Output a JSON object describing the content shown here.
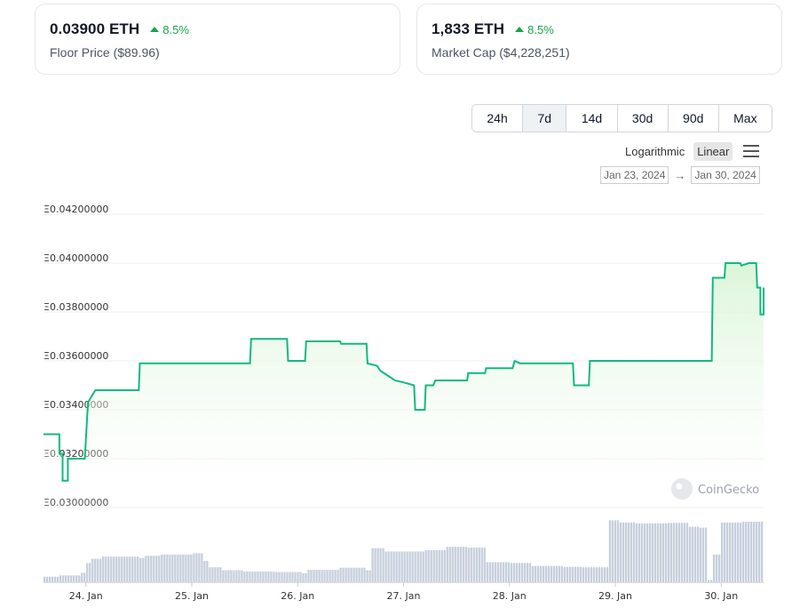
{
  "cards": [
    {
      "value": "0.03900 ETH",
      "change": "8.5%",
      "label": "Floor Price ($89.96)"
    },
    {
      "value": "1,833 ETH",
      "change": "8.5%",
      "label": "Market Cap ($4,228,251)"
    }
  ],
  "ranges": {
    "options": [
      "24h",
      "7d",
      "14d",
      "30d",
      "90d",
      "Max"
    ],
    "active": "7d"
  },
  "scale": {
    "log_label": "Logarithmic",
    "linear_label": "Linear",
    "active": "Linear"
  },
  "date_range": {
    "from": "Jan 23, 2024",
    "arrow": "→",
    "to": "Jan 30, 2024"
  },
  "watermark": "CoinGecko",
  "colors": {
    "line": "#10b981",
    "area_top": "#d9f5d6",
    "volume": "#c6cfdc",
    "positive": "#16a34a"
  },
  "chart_data": {
    "type": "line",
    "title": "",
    "xlabel": "",
    "ylabel": "",
    "y_tick_prefix": "Ξ",
    "yticks": [
      "Ξ0.04200000",
      "Ξ0.04000000",
      "Ξ0.03800000",
      "Ξ0.03600000",
      "Ξ0.03400000",
      "Ξ0.03200000",
      "Ξ0.03000000"
    ],
    "ytick_values": [
      0.042,
      0.04,
      0.038,
      0.036,
      0.034,
      0.032,
      0.03
    ],
    "ylim": [
      0.03,
      0.042
    ],
    "xticks": [
      "24. Jan",
      "25. Jan",
      "26. Jan",
      "27. Jan",
      "28. Jan",
      "29. Jan",
      "30. Jan"
    ],
    "xtick_values": [
      1,
      2,
      3,
      4,
      5,
      6,
      7
    ],
    "x_unit": "days since Jan 23, 2024",
    "xlim": [
      0.6,
      7.4
    ],
    "grid": true,
    "series": [
      {
        "values": [
          [
            0.6,
            0.033
          ],
          [
            0.75,
            0.033
          ],
          [
            0.75,
            0.0322
          ],
          [
            0.78,
            0.0322
          ],
          [
            0.78,
            0.0311
          ],
          [
            0.83,
            0.0311
          ],
          [
            0.83,
            0.032
          ],
          [
            0.99,
            0.032
          ],
          [
            1.02,
            0.0343
          ],
          [
            1.06,
            0.0346
          ],
          [
            1.09,
            0.0348
          ],
          [
            1.5,
            0.0348
          ],
          [
            1.51,
            0.0359
          ],
          [
            2.55,
            0.0359
          ],
          [
            2.56,
            0.0369
          ],
          [
            2.9,
            0.0369
          ],
          [
            2.91,
            0.036
          ],
          [
            3.07,
            0.036
          ],
          [
            3.08,
            0.0368
          ],
          [
            3.4,
            0.0368
          ],
          [
            3.41,
            0.0367
          ],
          [
            3.65,
            0.0367
          ],
          [
            3.66,
            0.0359
          ],
          [
            3.75,
            0.0358
          ],
          [
            3.78,
            0.0356
          ],
          [
            3.85,
            0.0354
          ],
          [
            3.92,
            0.0352
          ],
          [
            4.02,
            0.0351
          ],
          [
            4.1,
            0.035
          ],
          [
            4.11,
            0.034
          ],
          [
            4.2,
            0.034
          ],
          [
            4.21,
            0.035
          ],
          [
            4.28,
            0.035
          ],
          [
            4.3,
            0.0352
          ],
          [
            4.6,
            0.0352
          ],
          [
            4.61,
            0.0355
          ],
          [
            4.77,
            0.0355
          ],
          [
            4.78,
            0.0357
          ],
          [
            5.03,
            0.0357
          ],
          [
            5.05,
            0.036
          ],
          [
            5.1,
            0.0359
          ],
          [
            5.6,
            0.0359
          ],
          [
            5.61,
            0.035
          ],
          [
            5.75,
            0.035
          ],
          [
            5.76,
            0.036
          ],
          [
            6.91,
            0.036
          ],
          [
            6.92,
            0.0394
          ],
          [
            7.03,
            0.0394
          ],
          [
            7.04,
            0.04
          ],
          [
            7.18,
            0.04
          ],
          [
            7.19,
            0.0399
          ],
          [
            7.26,
            0.04
          ],
          [
            7.33,
            0.04
          ],
          [
            7.34,
            0.039
          ],
          [
            7.37,
            0.039
          ],
          [
            7.37,
            0.0379
          ],
          [
            7.42,
            0.0379
          ],
          [
            7.42,
            0.039
          ],
          [
            7.46,
            0.039
          ]
        ]
      }
    ],
    "volume": {
      "x_range": [
        0.6,
        7.46
      ],
      "segments": [
        [
          0.6,
          0.13
        ],
        [
          0.75,
          0.16
        ],
        [
          0.95,
          0.22
        ],
        [
          1.01,
          0.45
        ],
        [
          1.06,
          0.55
        ],
        [
          1.15,
          0.6
        ],
        [
          1.5,
          0.57
        ],
        [
          1.55,
          0.62
        ],
        [
          1.7,
          0.65
        ],
        [
          2.0,
          0.68
        ],
        [
          2.1,
          0.5
        ],
        [
          2.17,
          0.35
        ],
        [
          2.3,
          0.28
        ],
        [
          2.5,
          0.25
        ],
        [
          2.8,
          0.24
        ],
        [
          3.05,
          0.21
        ],
        [
          3.1,
          0.29
        ],
        [
          3.4,
          0.34
        ],
        [
          3.65,
          0.28
        ],
        [
          3.7,
          0.8
        ],
        [
          3.82,
          0.72
        ],
        [
          4.2,
          0.75
        ],
        [
          4.4,
          0.83
        ],
        [
          4.6,
          0.81
        ],
        [
          4.78,
          0.47
        ],
        [
          5.0,
          0.45
        ],
        [
          5.2,
          0.38
        ],
        [
          5.5,
          0.36
        ],
        [
          5.7,
          0.35
        ],
        [
          5.93,
          0.32
        ],
        [
          5.95,
          1.45
        ],
        [
          6.05,
          1.4
        ],
        [
          6.2,
          1.38
        ],
        [
          6.5,
          1.39
        ],
        [
          6.7,
          1.3
        ],
        [
          6.8,
          1.28
        ],
        [
          6.88,
          0.05
        ],
        [
          6.92,
          0.65
        ],
        [
          7.0,
          1.4
        ],
        [
          7.2,
          1.42
        ],
        [
          7.44,
          1.45
        ]
      ]
    }
  }
}
